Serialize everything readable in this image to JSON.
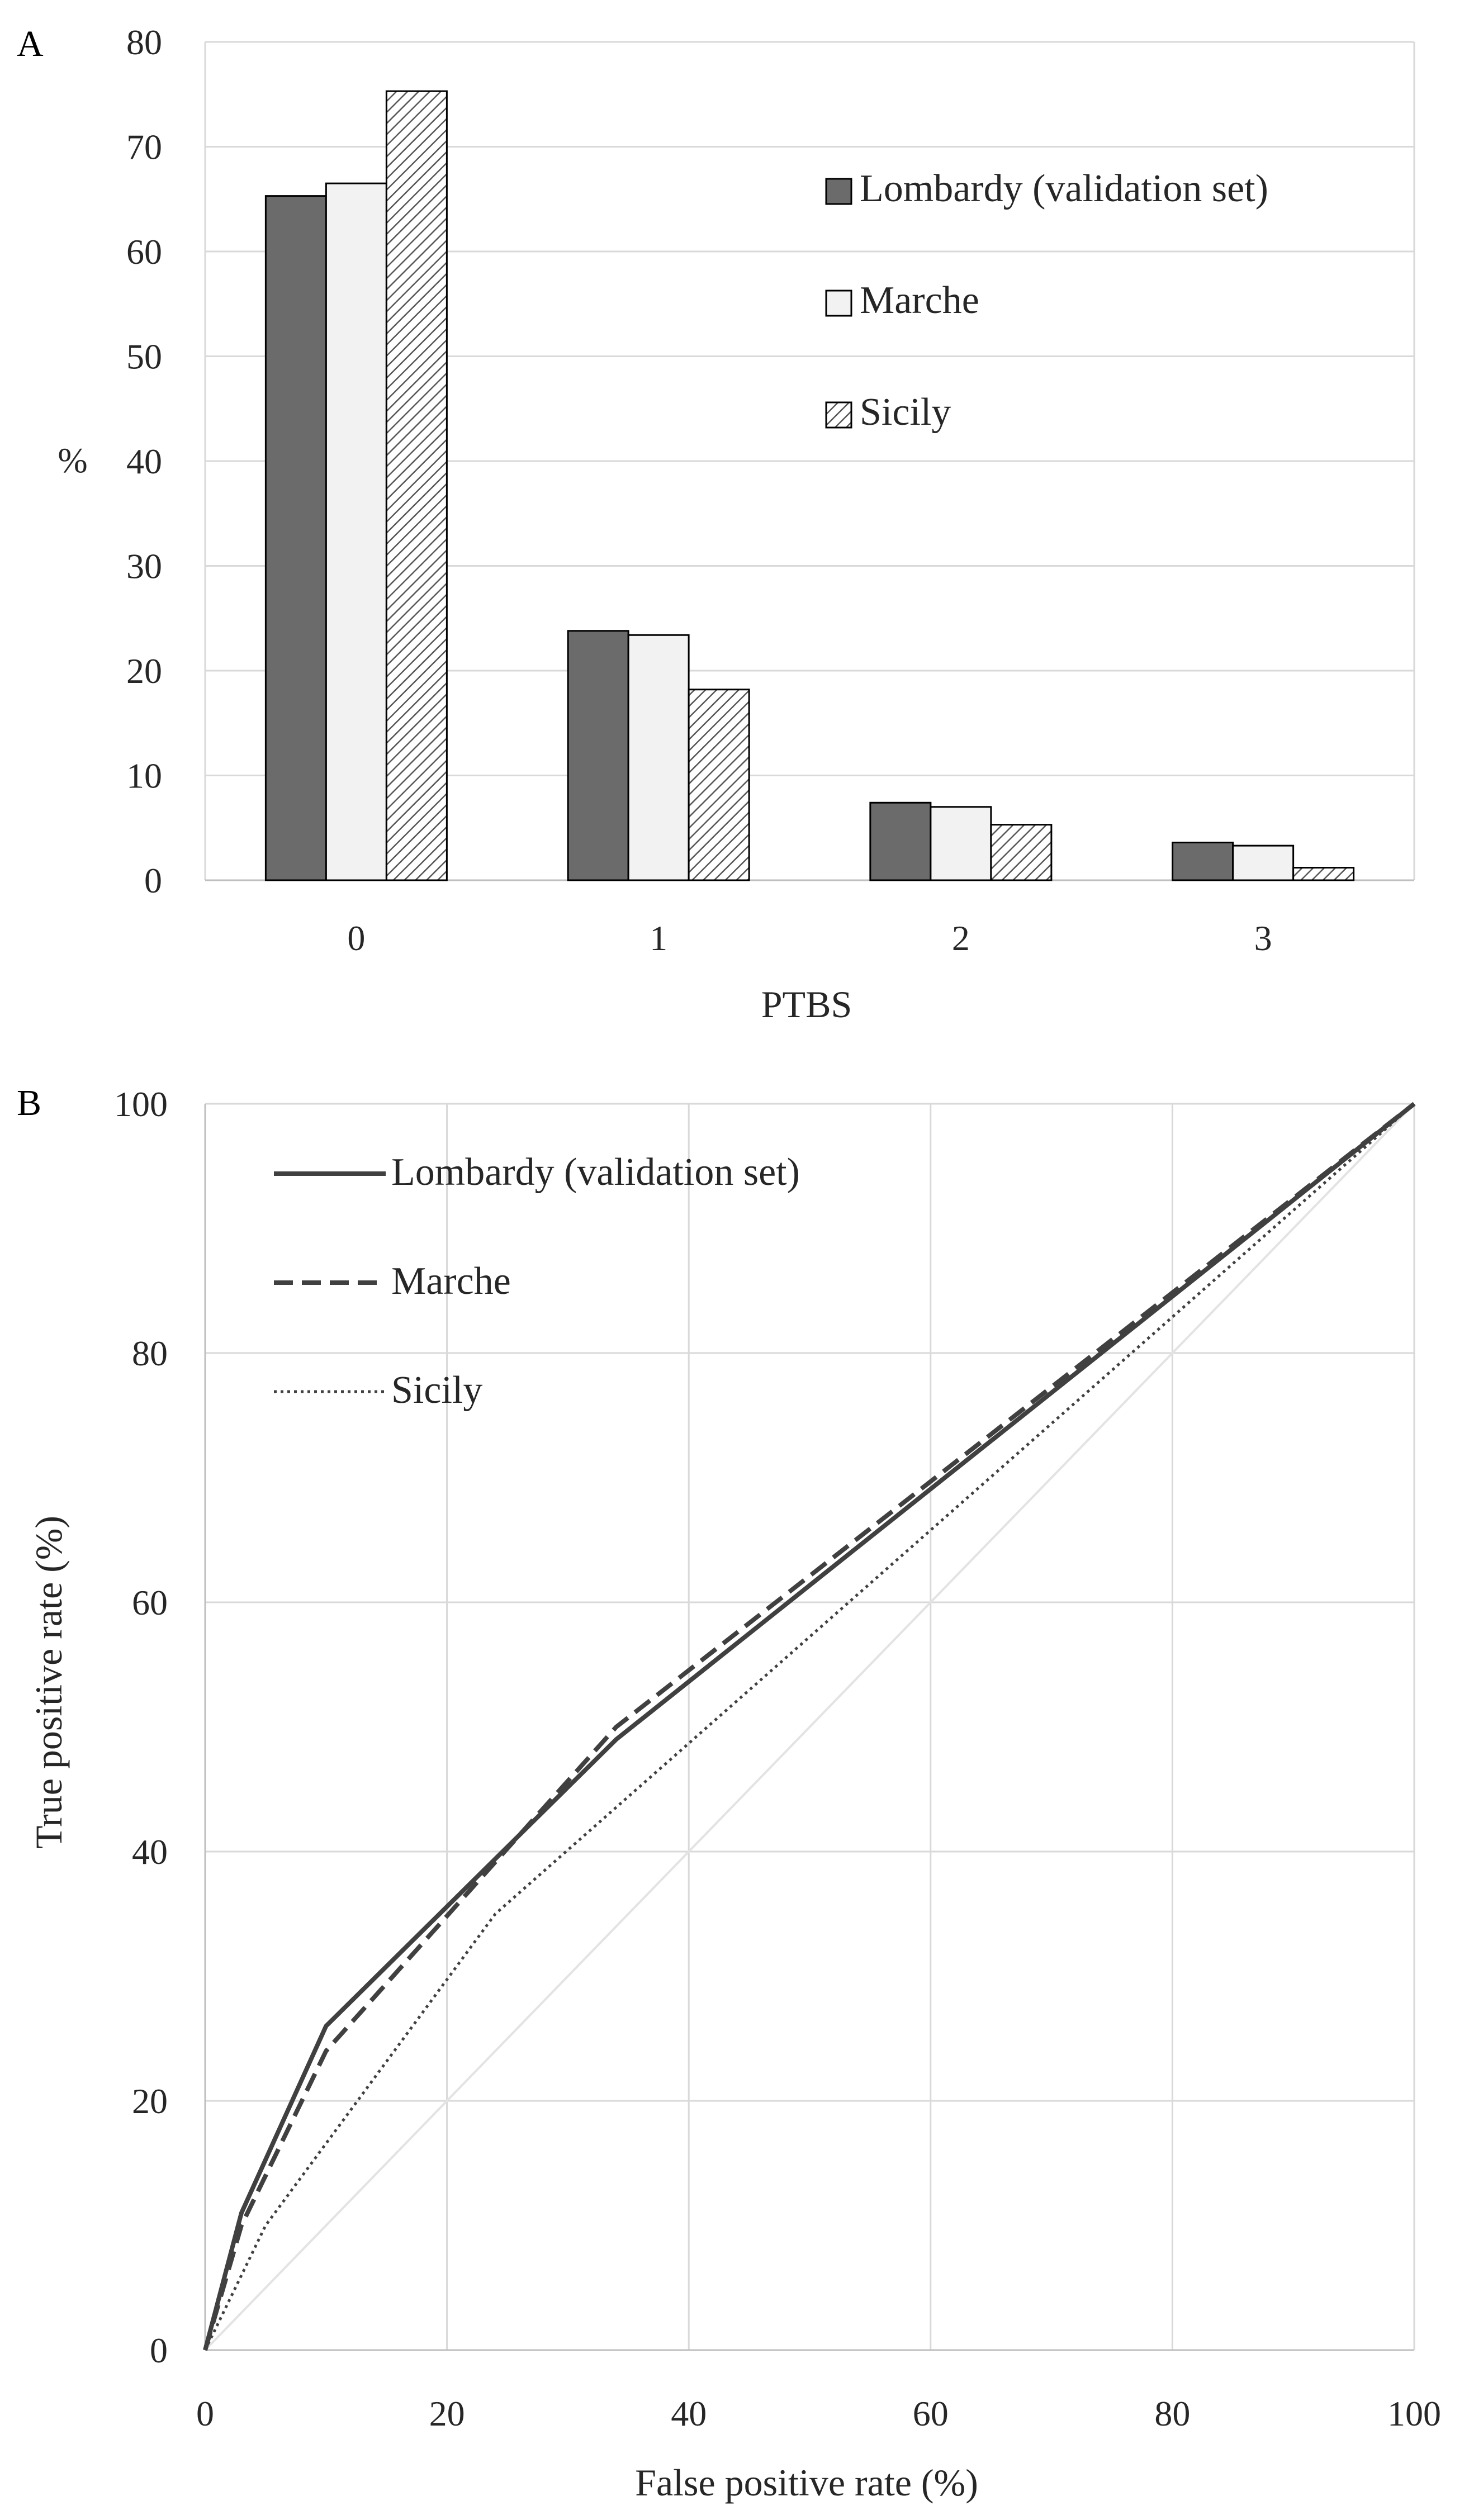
{
  "chart_data": [
    {
      "panel_label": "A",
      "type": "bar",
      "categories": [
        "0",
        "1",
        "2",
        "3"
      ],
      "series": [
        {
          "name": "Lombardy (validation set)",
          "values": [
            65.3,
            23.8,
            7.4,
            3.6
          ],
          "fill": "#6b6b6b",
          "pattern": "solid"
        },
        {
          "name": "Marche",
          "values": [
            66.5,
            23.4,
            7.0,
            3.3
          ],
          "fill": "#f2f2f2",
          "pattern": "solid"
        },
        {
          "name": "Sicily",
          "values": [
            75.3,
            18.2,
            5.3,
            1.2
          ],
          "fill": "#ffffff",
          "pattern": "diagonal-hatch"
        }
      ],
      "xlabel": "PTBS",
      "ylabel": "%",
      "ylim": [
        0,
        80
      ],
      "yticks": [
        0,
        10,
        20,
        30,
        40,
        50,
        60,
        70,
        80
      ],
      "grid": "horizontal",
      "legend_position": "right"
    },
    {
      "panel_label": "B",
      "type": "line",
      "series": [
        {
          "name": "Lombardy (validation set)",
          "line_style": "solid",
          "x": [
            0,
            3,
            10,
            34,
            100
          ],
          "y": [
            0,
            11,
            26,
            49,
            100
          ]
        },
        {
          "name": "Marche",
          "line_style": "dashed",
          "x": [
            0,
            3,
            10,
            34,
            100
          ],
          "y": [
            0,
            10,
            24,
            50,
            100
          ]
        },
        {
          "name": "Sicily",
          "line_style": "dotted",
          "x": [
            0,
            5,
            24,
            100
          ],
          "y": [
            0,
            10,
            35,
            100
          ]
        }
      ],
      "reference_line": {
        "x": [
          0,
          100
        ],
        "y": [
          0,
          100
        ]
      },
      "xlabel": "False positive rate (%)",
      "ylabel": "True positive rate (%)",
      "xlim": [
        0,
        100
      ],
      "ylim": [
        0,
        100
      ],
      "xticks": [
        0,
        20,
        40,
        60,
        80,
        100
      ],
      "yticks": [
        0,
        20,
        40,
        60,
        80,
        100
      ],
      "grid": "both",
      "legend_position": "top-left"
    }
  ]
}
